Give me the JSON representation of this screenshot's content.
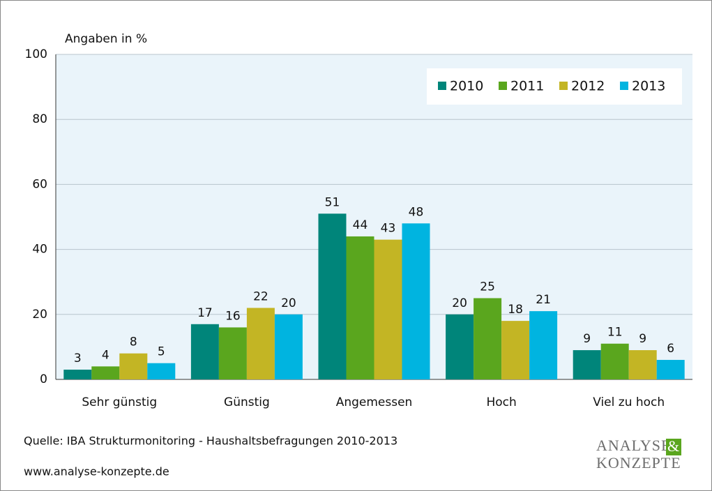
{
  "chart_data": {
    "type": "bar",
    "y_label": "Angaben in  %",
    "categories": [
      "Sehr günstig",
      "Günstig",
      "Angemessen",
      "Hoch",
      "Viel zu hoch"
    ],
    "series": [
      {
        "name": "2010",
        "color": "#00857a",
        "values": [
          3,
          17,
          51,
          20,
          9
        ]
      },
      {
        "name": "2011",
        "color": "#5aa61e",
        "values": [
          4,
          16,
          44,
          25,
          11
        ]
      },
      {
        "name": "2012",
        "color": "#c3b524",
        "values": [
          8,
          22,
          43,
          18,
          9
        ]
      },
      {
        "name": "2013",
        "color": "#00b4e0",
        "values": [
          5,
          20,
          48,
          21,
          6
        ]
      }
    ],
    "ylim": [
      0,
      100
    ],
    "yticks": [
      0,
      20,
      40,
      60,
      80,
      100
    ],
    "grid": true,
    "legend": "top-right",
    "source": "Quelle: IBA Strukturmonitoring - Haushaltsbefragungen 2010-2013",
    "url": "www.analyse-konzepte.de"
  },
  "logo": {
    "line1": "ANALYSE",
    "ampersand": "&",
    "line2": "KONZEPTE"
  }
}
